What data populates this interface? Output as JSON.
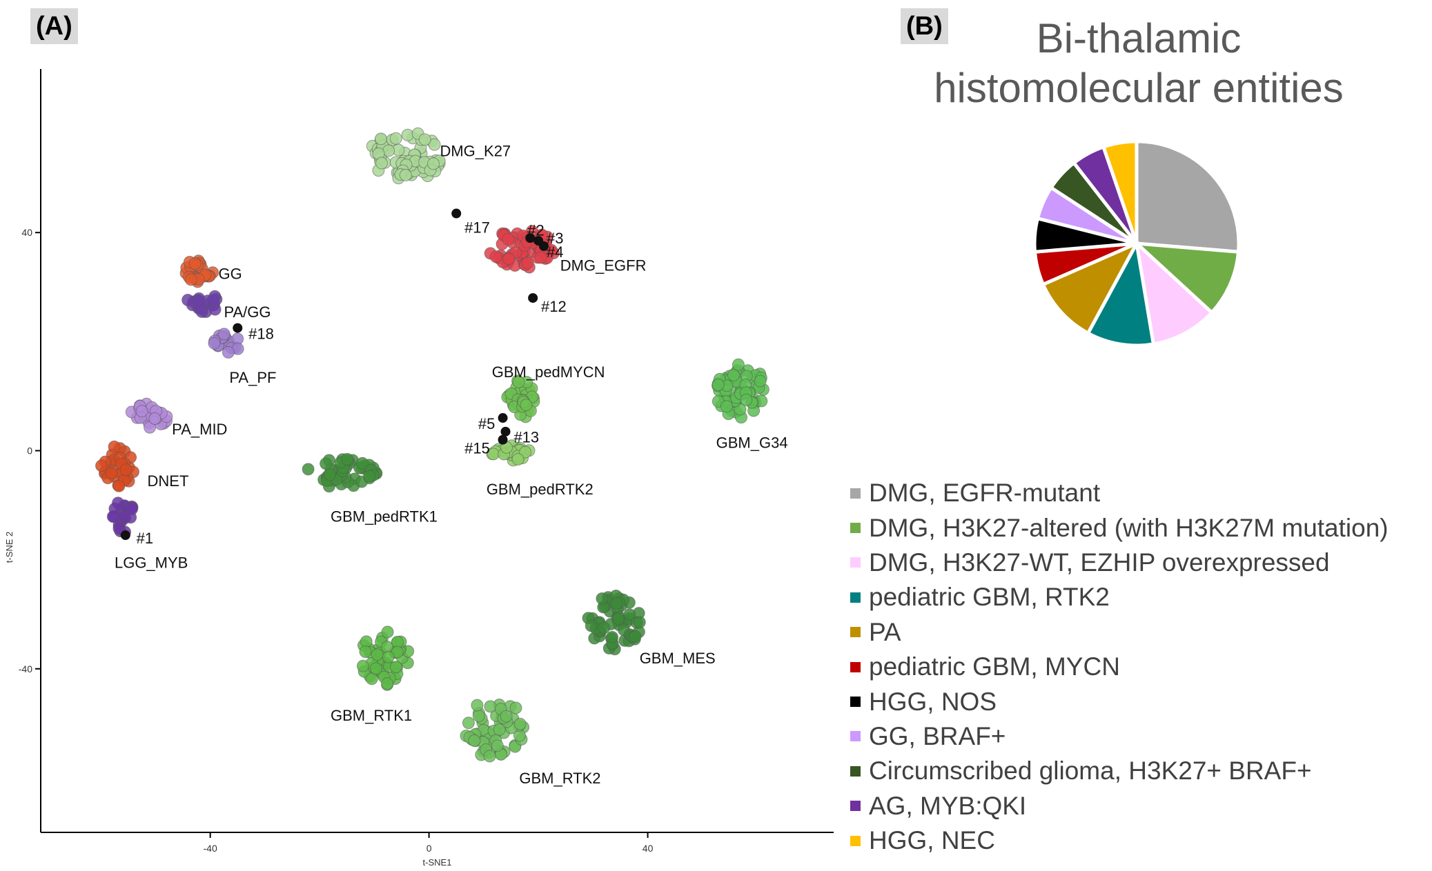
{
  "panel_a_label": "(A)",
  "panel_b_label": "(B)",
  "chart_data": [
    {
      "type": "scatter",
      "title": "",
      "xlabel": "t-SNE1",
      "ylabel": "t-SNE 2",
      "xlim": [
        -71,
        74
      ],
      "ylim": [
        -70,
        70
      ],
      "xticks": [
        -40,
        0,
        40
      ],
      "yticks": [
        -40,
        0,
        40
      ],
      "grid": false,
      "clusters": [
        {
          "name": "DMG_K27",
          "color": "#a9d796",
          "center": [
            -4,
            54
          ],
          "spread": [
            7,
            4.5
          ],
          "count": 70
        },
        {
          "name": "DMG_EGFR",
          "color": "#e0404a",
          "center": [
            17,
            37
          ],
          "spread": [
            6,
            3.5
          ],
          "count": 60
        },
        {
          "name": "GG",
          "color": "#e2592d",
          "center": [
            -42,
            33
          ],
          "spread": [
            2.6,
            2.4
          ],
          "count": 25
        },
        {
          "name": "PA/GG",
          "color": "#6b3fa8",
          "center": [
            -41,
            27
          ],
          "spread": [
            3.5,
            1.8
          ],
          "count": 20
        },
        {
          "name": "PA_PF",
          "color": "#a07fcf",
          "center": [
            -37,
            19.5
          ],
          "spread": [
            2.4,
            2.0
          ],
          "count": 18
        },
        {
          "name": "PA_MID",
          "color": "#b18ad8",
          "center": [
            -51,
            6.5
          ],
          "spread": [
            4,
            2.3
          ],
          "count": 25
        },
        {
          "name": "DNET",
          "color": "#d84a1f",
          "center": [
            -57,
            -3
          ],
          "spread": [
            3,
            3.8
          ],
          "count": 30
        },
        {
          "name": "LGG_MYB",
          "color": "#6a37a4",
          "center": [
            -56,
            -12
          ],
          "spread": [
            2.2,
            3
          ],
          "count": 18
        },
        {
          "name": "GBM_pedMYCN",
          "color": "#6cbf50",
          "center": [
            17,
            9.5
          ],
          "spread": [
            2.8,
            3.5
          ],
          "count": 35
        },
        {
          "name": "GBM_pedRTK2",
          "color": "#8fce6a",
          "center": [
            15,
            -0.5
          ],
          "spread": [
            4,
            1.6
          ],
          "count": 30
        },
        {
          "name": "GBM_G34",
          "color": "#5cbd52",
          "center": [
            57,
            11
          ],
          "spread": [
            4.5,
            5
          ],
          "count": 60
        },
        {
          "name": "GBM_pedRTK1",
          "color": "#3f8f3a",
          "center": [
            -16,
            -4
          ],
          "spread": [
            6.5,
            2.8
          ],
          "count": 45
        },
        {
          "name": "GBM_RTK1",
          "color": "#5cb847",
          "center": [
            -8,
            -38
          ],
          "spread": [
            4.5,
            5
          ],
          "count": 50
        },
        {
          "name": "GBM_MES",
          "color": "#3c8a38",
          "center": [
            34,
            -31.5
          ],
          "spread": [
            5,
            5
          ],
          "count": 55
        },
        {
          "name": "GBM_RTK2",
          "color": "#6cbd5a",
          "center": [
            12,
            -51
          ],
          "spread": [
            5.5,
            5.5
          ],
          "count": 55
        }
      ],
      "cluster_labels": [
        {
          "text": "DMG_K27",
          "x": 2,
          "y": 55
        },
        {
          "text": "DMG_EGFR",
          "x": 24,
          "y": 34
        },
        {
          "text": "GG",
          "x": -38.5,
          "y": 32.5
        },
        {
          "text": "PA/GG",
          "x": -37.5,
          "y": 25.5
        },
        {
          "text": "PA_PF",
          "x": -36.5,
          "y": 13.5
        },
        {
          "text": "PA_MID",
          "x": -47,
          "y": 4
        },
        {
          "text": "DNET",
          "x": -51.5,
          "y": -5.5
        },
        {
          "text": "LGG_MYB",
          "x": -57.5,
          "y": -20.5
        },
        {
          "text": "GBM_pedMYCN",
          "x": 11.5,
          "y": 14.5
        },
        {
          "text": "GBM_pedRTK2",
          "x": 10.5,
          "y": -7
        },
        {
          "text": "GBM_G34",
          "x": 52.5,
          "y": 1.5
        },
        {
          "text": "GBM_pedRTK1",
          "x": -18,
          "y": -12
        },
        {
          "text": "GBM_RTK1",
          "x": -18,
          "y": -48.5
        },
        {
          "text": "GBM_MES",
          "x": 38.5,
          "y": -38
        },
        {
          "text": "GBM_RTK2",
          "x": 16.5,
          "y": -60
        }
      ],
      "sample_points": [
        {
          "label": "#17",
          "x": 5,
          "y": 43.5,
          "lx": 6.5,
          "ly": 41
        },
        {
          "label": "#2",
          "x": 18.5,
          "y": 39,
          "lx": 18,
          "ly": 40.5
        },
        {
          "label": "#3",
          "x": 20,
          "y": 38.5,
          "lx": 21.5,
          "ly": 39
        },
        {
          "label": "#4",
          "x": 21,
          "y": 37.5,
          "lx": 21.5,
          "ly": 36.5
        },
        {
          "label": "#12",
          "x": 19,
          "y": 28,
          "lx": 20.5,
          "ly": 26.5
        },
        {
          "label": "#18",
          "x": -35,
          "y": 22.5,
          "lx": -33,
          "ly": 21.5
        },
        {
          "label": "#5",
          "x": 13.5,
          "y": 6,
          "lx": 9,
          "ly": 5
        },
        {
          "label": "#13",
          "x": 14,
          "y": 3.5,
          "lx": 15.5,
          "ly": 2.5
        },
        {
          "label": "#15",
          "x": 13.5,
          "y": 2,
          "lx": 6.5,
          "ly": 0.5
        },
        {
          "label": "#1",
          "x": -55.5,
          "y": -15.5,
          "lx": -53.5,
          "ly": -16
        }
      ]
    },
    {
      "type": "pie",
      "title": "Bi-thalamic histomolecular entities",
      "title_lines": [
        "Bi-thalamic",
        "histomolecular entities"
      ],
      "legend_position": "bottom-right",
      "slices": [
        {
          "label": "DMG, EGFR-mutant",
          "value": 5,
          "color": "#a6a6a6"
        },
        {
          "label": "DMG, H3K27-altered (with H3K27M mutation)",
          "value": 2,
          "color": "#70ad47"
        },
        {
          "label": "DMG, H3K27-WT, EZHIP overexpressed",
          "value": 2,
          "color": "#ffccff"
        },
        {
          "label": "pediatric GBM, RTK2",
          "value": 2,
          "color": "#008080"
        },
        {
          "label": "PA",
          "value": 2,
          "color": "#bf8f00"
        },
        {
          "label": "pediatric GBM, MYCN",
          "value": 1,
          "color": "#c00000"
        },
        {
          "label": "HGG, NOS",
          "value": 1,
          "color": "#000000"
        },
        {
          "label": "GG, BRAF+",
          "value": 1,
          "color": "#cc99ff"
        },
        {
          "label": "Circumscribed glioma, H3K27+ BRAF+",
          "value": 1,
          "color": "#375623"
        },
        {
          "label": "AG, MYB:QKI",
          "value": 1,
          "color": "#7030a0"
        },
        {
          "label": "HGG, NEC",
          "value": 1,
          "color": "#ffc000"
        }
      ]
    }
  ]
}
